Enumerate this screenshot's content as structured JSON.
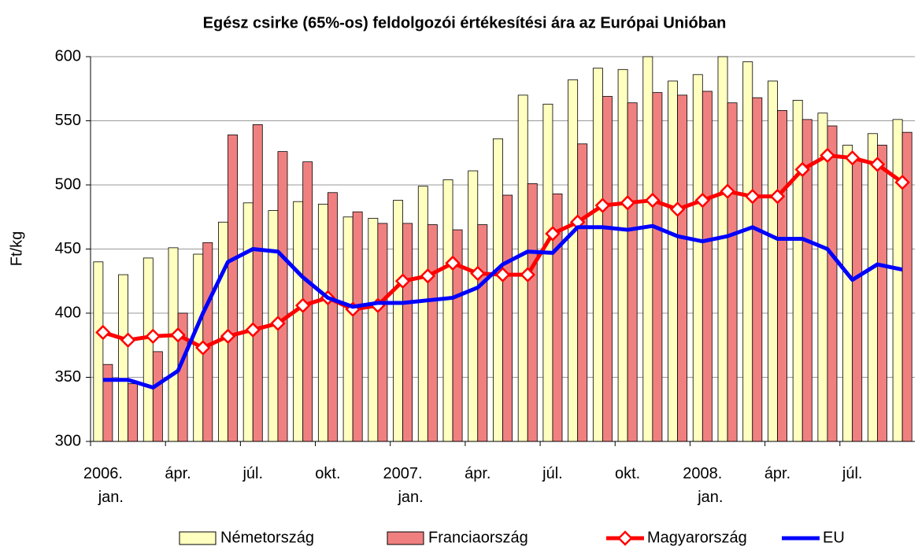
{
  "chart_data": {
    "type": "bar-line",
    "title": "Egész csirke (65%-os) feldolgozói értékesítési ára az Európai Unióban",
    "ylabel": "Ft/kg",
    "categories": [
      "2006.\njan.",
      null,
      null,
      "ápr.",
      null,
      null,
      "júl.",
      null,
      null,
      "okt.",
      null,
      null,
      "2007.\njan.",
      null,
      null,
      "ápr.",
      null,
      null,
      "júl.",
      null,
      null,
      "okt.",
      null,
      null,
      "2008.\njan.",
      null,
      null,
      "ápr.",
      null,
      null,
      "júl.",
      null,
      null
    ],
    "series": [
      {
        "name": "Németország",
        "type": "bar",
        "color": "#ffffc0",
        "values": [
          440,
          430,
          443,
          451,
          446,
          471,
          486,
          480,
          487,
          485,
          475,
          474,
          488,
          499,
          504,
          511,
          536,
          570,
          563,
          582,
          591,
          590,
          600,
          581,
          586,
          600,
          596,
          581,
          566,
          556,
          531,
          540,
          551
        ]
      },
      {
        "name": "Franciaország",
        "type": "bar",
        "color": "#f08080",
        "values": [
          360,
          345,
          370,
          400,
          455,
          539,
          547,
          526,
          518,
          494,
          479,
          470,
          470,
          469,
          465,
          469,
          492,
          501,
          493,
          532,
          569,
          564,
          572,
          570,
          573,
          564,
          568,
          558,
          551,
          546,
          520,
          531,
          541
        ]
      },
      {
        "name": "Magyarország",
        "type": "line",
        "marker": "diamond",
        "color": "#ff0000",
        "values": [
          385,
          379,
          382,
          383,
          373,
          382,
          387,
          392,
          406,
          412,
          403,
          406,
          425,
          429,
          439,
          431,
          430,
          430,
          462,
          471,
          484,
          486,
          488,
          481,
          488,
          495,
          491,
          491,
          512,
          523,
          521,
          516,
          502
        ]
      },
      {
        "name": "EU",
        "type": "line",
        "color": "#0000ff",
        "values": [
          348,
          348,
          342,
          355,
          400,
          440,
          450,
          448,
          428,
          412,
          405,
          408,
          408,
          410,
          412,
          420,
          438,
          448,
          447,
          467,
          467,
          465,
          468,
          460,
          456,
          460,
          467,
          458,
          458,
          450,
          426,
          438,
          434
        ]
      }
    ],
    "ylim": [
      300,
      600
    ],
    "yticks": [
      300,
      350,
      400,
      450,
      500,
      550,
      600
    ],
    "grid": true,
    "legend": "bottom"
  }
}
